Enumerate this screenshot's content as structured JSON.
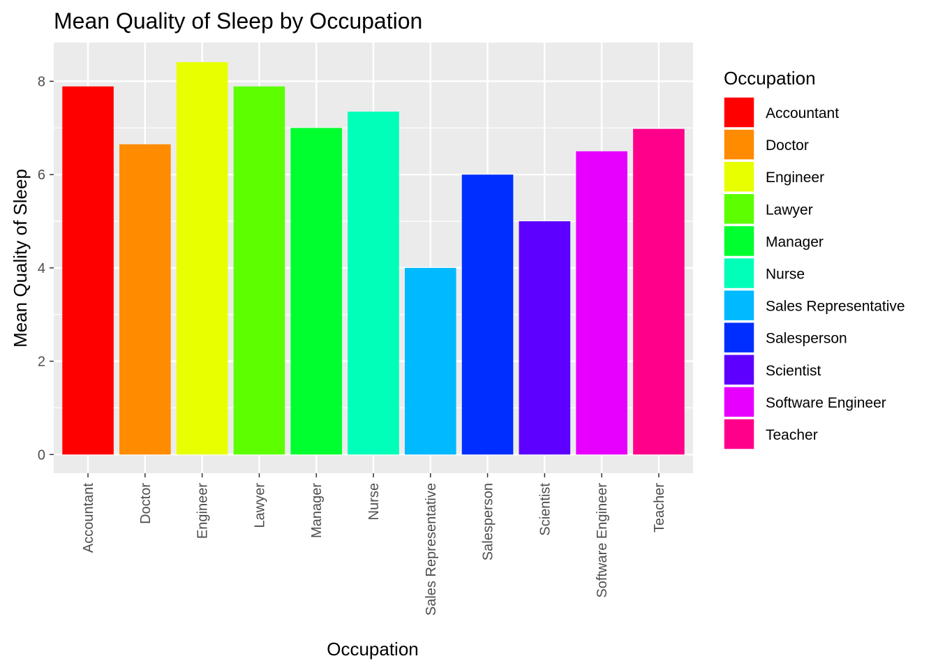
{
  "chart_data": {
    "type": "bar",
    "title": "Mean Quality of Sleep by Occupation",
    "xlabel": "Occupation",
    "ylabel": "Mean Quality of Sleep",
    "categories": [
      "Accountant",
      "Doctor",
      "Engineer",
      "Lawyer",
      "Manager",
      "Nurse",
      "Sales Representative",
      "Salesperson",
      "Scientist",
      "Software Engineer",
      "Teacher"
    ],
    "values": [
      7.89,
      6.65,
      8.41,
      7.89,
      7.0,
      7.35,
      4.0,
      6.0,
      5.0,
      6.5,
      6.98
    ],
    "colors": [
      "#FF0000",
      "#FF8B00",
      "#E8FF00",
      "#5DFF00",
      "#00FF2E",
      "#00FFB9",
      "#00B9FF",
      "#002EFF",
      "#5D00FF",
      "#E800FF",
      "#FF008B"
    ],
    "ylim": [
      -0.4,
      8.83
    ],
    "yticks": [
      0,
      2,
      4,
      6,
      8
    ],
    "grid": true,
    "legend": {
      "title": "Occupation",
      "placement": "right",
      "entries": [
        "Accountant",
        "Doctor",
        "Engineer",
        "Lawyer",
        "Manager",
        "Nurse",
        "Sales Representative",
        "Salesperson",
        "Scientist",
        "Software Engineer",
        "Teacher"
      ]
    }
  },
  "colors": {
    "panel_background": "#EBEBEB",
    "grid_major": "#FFFFFF",
    "tick_text": "#4D4D4D",
    "tick_mark": "#333333"
  }
}
